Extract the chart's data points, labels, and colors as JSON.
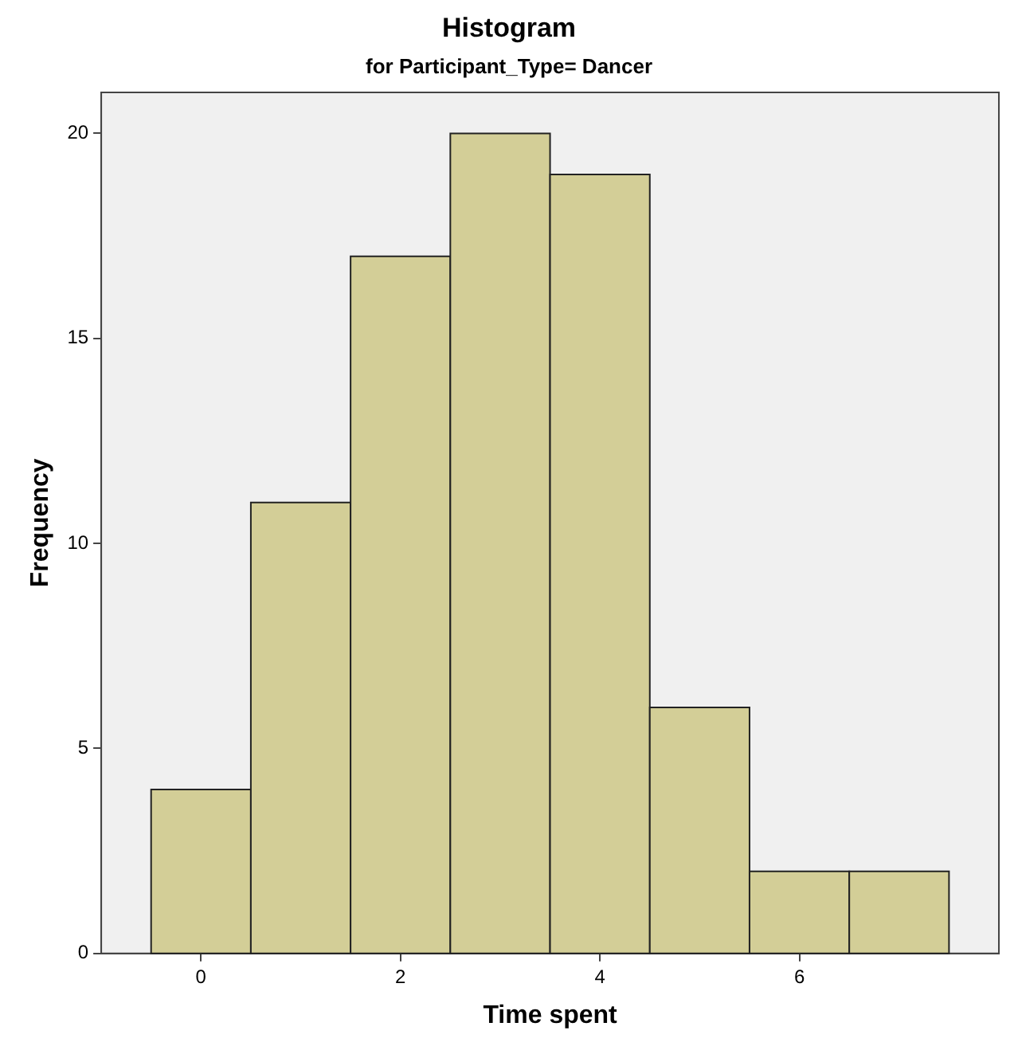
{
  "chart_data": {
    "type": "histogram",
    "title": "Histogram",
    "subtitle": "for Participant_Type= Dancer",
    "xlabel": "Time spent",
    "ylabel": "Frequency",
    "bins": [
      -0.5,
      0.5,
      1.5,
      2.5,
      3.5,
      4.5,
      5.5,
      6.5,
      7.5
    ],
    "values": [
      4,
      11,
      17,
      20,
      19,
      6,
      2,
      2
    ],
    "color": "#d3ce97",
    "xlim": [
      -1,
      8
    ],
    "xticks": [
      0,
      2,
      4,
      6
    ],
    "ylim": [
      0,
      21
    ],
    "yticks": [
      0,
      5,
      10,
      15,
      20
    ],
    "grid": false,
    "legend": false
  }
}
